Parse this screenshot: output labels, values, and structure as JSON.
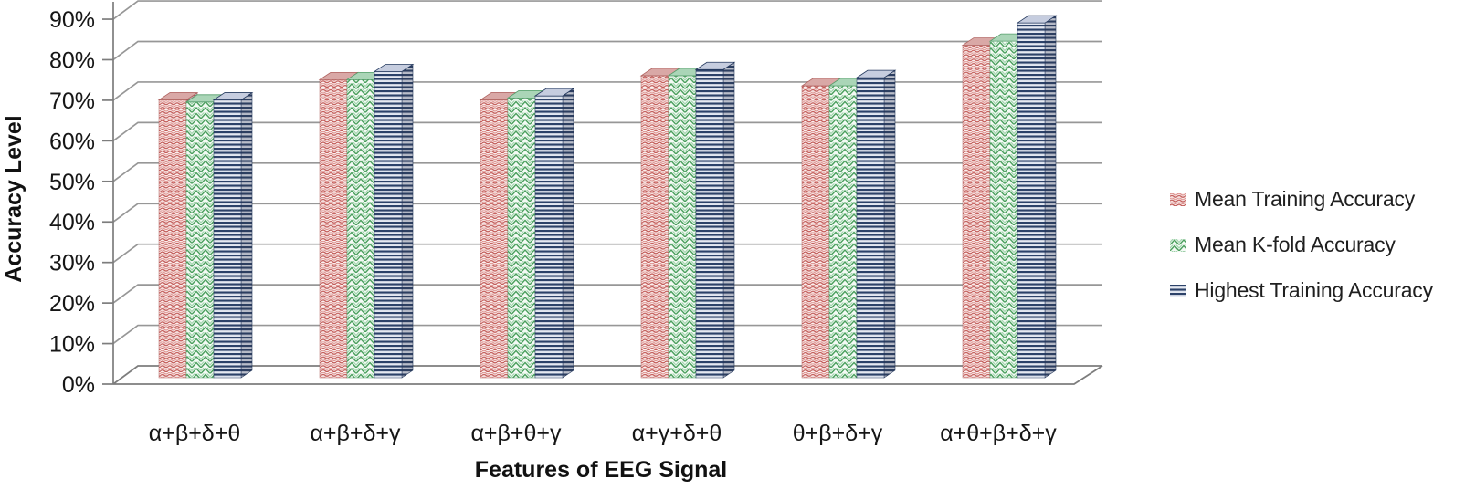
{
  "chart_data": {
    "type": "bar",
    "style": "3d-clustered-column",
    "title": "",
    "xlabel": "Features of EEG Signal",
    "ylabel": "Accuracy Level",
    "ylim": [
      0,
      90
    ],
    "ytick_step": 10,
    "ytick_labels": [
      "0%",
      "10%",
      "20%",
      "30%",
      "40%",
      "50%",
      "60%",
      "70%",
      "80%",
      "90%"
    ],
    "grid": true,
    "legend_position": "right",
    "categories": [
      "α+β+δ+θ",
      "α+β+δ+γ",
      "α+β+θ+γ",
      "α+γ+δ+θ",
      "θ+β+δ+γ",
      "α+θ+β+δ+γ"
    ],
    "series": [
      {
        "name": "Mean Training Accuracy",
        "pattern": "red-wave",
        "color": "#c0504d",
        "values": [
          68.5,
          73.5,
          68.5,
          74.5,
          72,
          82
        ]
      },
      {
        "name": "Mean K-fold Accuracy",
        "pattern": "green-shingle",
        "color": "#4ba05e",
        "values": [
          68,
          73.5,
          69,
          74.5,
          72,
          83
        ]
      },
      {
        "name": "Highest Training Accuracy",
        "pattern": "navy-horizontal-lines",
        "color": "#2c4269",
        "values": [
          68.5,
          75.5,
          69.5,
          76,
          74,
          87.5
        ]
      }
    ]
  }
}
